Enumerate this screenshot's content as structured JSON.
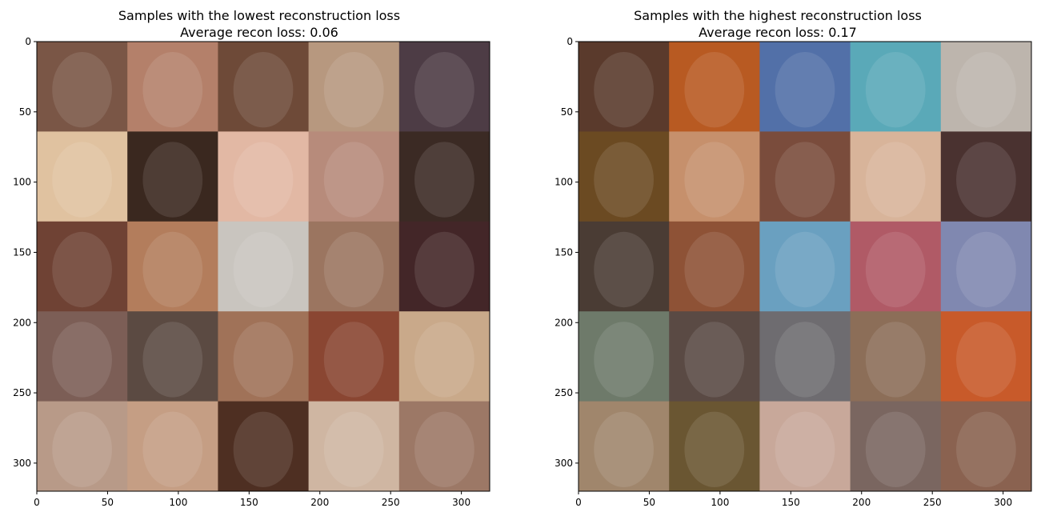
{
  "chart_data": [
    {
      "type": "image-grid",
      "title_line1": "Samples with the lowest reconstruction loss",
      "title_line2": "Average recon loss: 0.06",
      "x_ticks": [
        "0",
        "50",
        "100",
        "150",
        "200",
        "250",
        "300"
      ],
      "y_ticks": [
        "0",
        "50",
        "100",
        "150",
        "200",
        "250",
        "300"
      ],
      "xlim": [
        0,
        320
      ],
      "ylim": [
        320,
        0
      ],
      "grid_rows": 5,
      "grid_cols": 5,
      "cell_size": 64,
      "tile_colors": [
        [
          "#7a5646",
          "#b4806a",
          "#6e4a38",
          "#b7987f",
          "#4d3c45"
        ],
        [
          "#e0c2a0",
          "#3a281f",
          "#e2b8a4",
          "#b78b7b",
          "#3b2a24"
        ],
        [
          "#6f4234",
          "#b37d5c",
          "#c9c5bf",
          "#9b7560",
          "#432628"
        ],
        [
          "#7c5e56",
          "#5b4a42",
          "#a07258",
          "#8a4632",
          "#c9a98a"
        ],
        [
          "#b89a88",
          "#c59e84",
          "#4e2f22",
          "#cfb6a2",
          "#9c7866"
        ]
      ]
    },
    {
      "type": "image-grid",
      "title_line1": "Samples with the highest reconstruction loss",
      "title_line2": "Average recon loss: 0.17",
      "x_ticks": [
        "0",
        "50",
        "100",
        "150",
        "200",
        "250",
        "300"
      ],
      "y_ticks": [
        "0",
        "50",
        "100",
        "150",
        "200",
        "250",
        "300"
      ],
      "xlim": [
        0,
        320
      ],
      "ylim": [
        320,
        0
      ],
      "grid_rows": 5,
      "grid_cols": 5,
      "cell_size": 64,
      "tile_colors": [
        [
          "#5a3a2c",
          "#b85a22",
          "#5270a8",
          "#5aa9b8",
          "#bdb5ad"
        ],
        [
          "#6b4a22",
          "#c6906c",
          "#7a4c3c",
          "#d8b49a",
          "#4a3230"
        ],
        [
          "#4a3c34",
          "#8e5236",
          "#6aa0c0",
          "#b05a66",
          "#8088b0"
        ],
        [
          "#6e7a6a",
          "#5a4a44",
          "#6e6c70",
          "#8c6e58",
          "#c85a2a"
        ],
        [
          "#a0866c",
          "#6a5632",
          "#c8a89a",
          "#7a6660",
          "#8a6250"
        ]
      ]
    }
  ]
}
